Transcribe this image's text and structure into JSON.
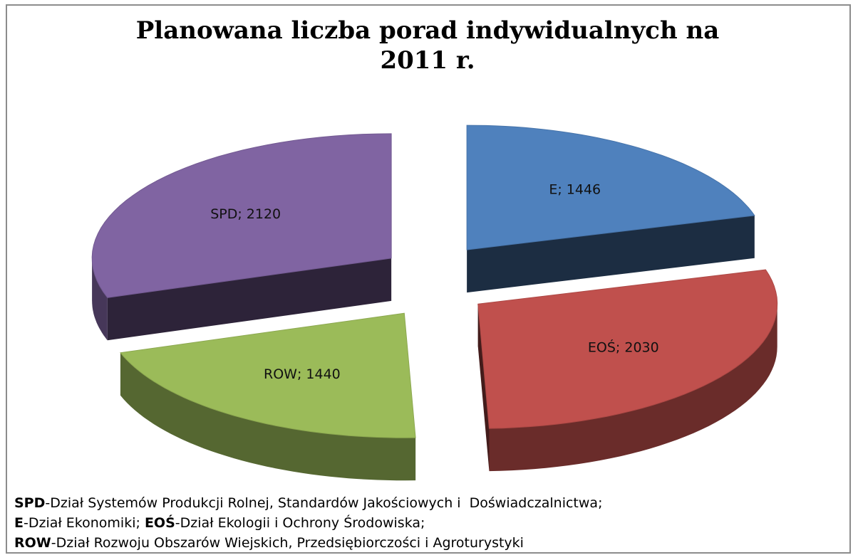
{
  "chart_data": {
    "type": "pie",
    "title": "Planowana liczba porad indywidualnych na 2011 r.",
    "categories": [
      "E",
      "EOŚ",
      "ROW",
      "SPD"
    ],
    "values": [
      1446,
      2030,
      1440,
      2120
    ],
    "value_labels": [
      "E; 1446",
      "EOŚ; 2030",
      "ROW; 1440",
      "SPD; 2120"
    ],
    "colors": [
      "#4f81bd",
      "#c0504d",
      "#9bbb59",
      "#8064a2"
    ],
    "notes": [
      [
        {
          "bold": "SPD",
          "text": "-Dział Systemów Produkcji Rolnej, Standardów Jakościowych i  Doświadczalnictwa;"
        }
      ],
      [
        {
          "bold": "E",
          "text": "-Dział Ekonomiki; "
        },
        {
          "bold": "EOŚ",
          "text": "-Dział Ekologii i Ochrony Środowiska;"
        }
      ],
      [
        {
          "bold": "ROW",
          "text": "-Dział Rozwoju Obszarów Wiejskich, Przedsiębiorczości i Agroturystyki"
        }
      ]
    ]
  }
}
